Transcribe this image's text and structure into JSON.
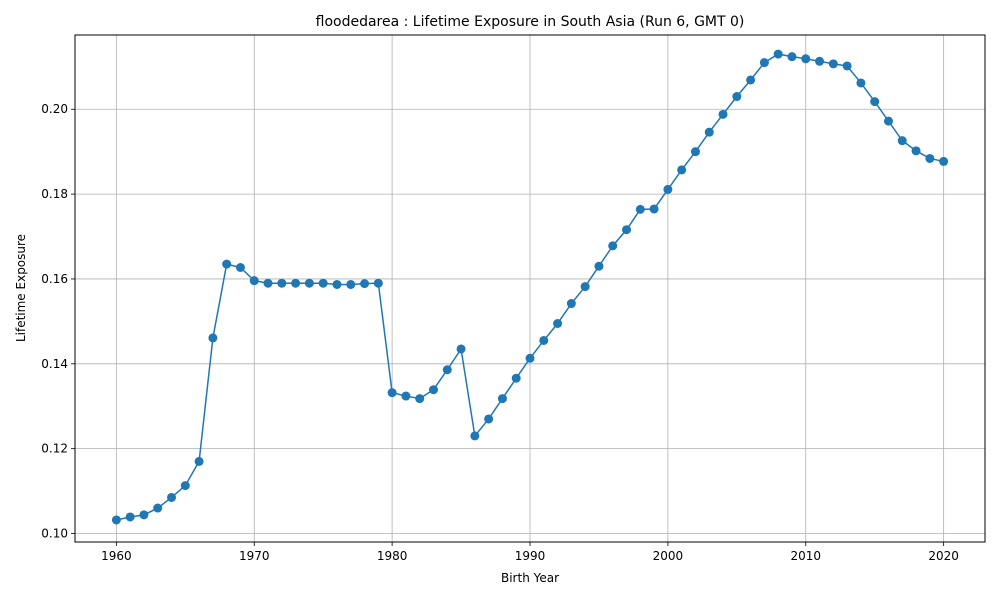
{
  "chart_data": {
    "type": "line",
    "title": "floodedarea : Lifetime Exposure in South Asia (Run 6, GMT 0)",
    "xlabel": "Birth Year",
    "ylabel": "Lifetime Exposure",
    "xlim": [
      1957,
      2023
    ],
    "ylim": [
      0.098,
      0.2175
    ],
    "xticks": [
      1960,
      1970,
      1980,
      1990,
      2000,
      2010,
      2020
    ],
    "yticks": [
      0.1,
      0.12,
      0.14,
      0.16,
      0.18,
      0.2
    ],
    "ytick_labels": [
      "0.10",
      "0.12",
      "0.14",
      "0.16",
      "0.18",
      "0.20"
    ],
    "grid": true,
    "line_color": "#1f77b4",
    "series": [
      {
        "x": [
          1960,
          1961,
          1962,
          1963,
          1964,
          1965,
          1966,
          1967,
          1968,
          1969,
          1970,
          1971,
          1972,
          1973,
          1974,
          1975,
          1976,
          1977,
          1978,
          1979,
          1980,
          1981,
          1982,
          1983,
          1984,
          1985,
          1986,
          1987,
          1988,
          1989,
          1990,
          1991,
          1992,
          1993,
          1994,
          1995,
          1996,
          1997,
          1998,
          1999,
          2000,
          2001,
          2002,
          2003,
          2004,
          2005,
          2006,
          2007,
          2008,
          2009,
          2010,
          2011,
          2012,
          2013,
          2014,
          2015,
          2016,
          2017,
          2018,
          2019,
          2020
        ],
        "values": [
          0.1032,
          0.1039,
          0.1044,
          0.106,
          0.1085,
          0.1113,
          0.117,
          0.1461,
          0.1635,
          0.1627,
          0.1596,
          0.159,
          0.159,
          0.159,
          0.159,
          0.159,
          0.1587,
          0.1587,
          0.1589,
          0.159,
          0.1332,
          0.1324,
          0.1318,
          0.1339,
          0.1386,
          0.1435,
          0.123,
          0.127,
          0.1318,
          0.1366,
          0.1413,
          0.1455,
          0.1495,
          0.1542,
          0.1582,
          0.163,
          0.1678,
          0.1716,
          0.1764,
          0.1765,
          0.1811,
          0.1857,
          0.19,
          0.1946,
          0.1988,
          0.203,
          0.2069,
          0.211,
          0.213,
          0.2124,
          0.2119,
          0.2113,
          0.2107,
          0.2102,
          0.2062,
          0.2018,
          0.1972,
          0.1926,
          0.1902,
          0.1884,
          0.1877
        ]
      }
    ]
  }
}
